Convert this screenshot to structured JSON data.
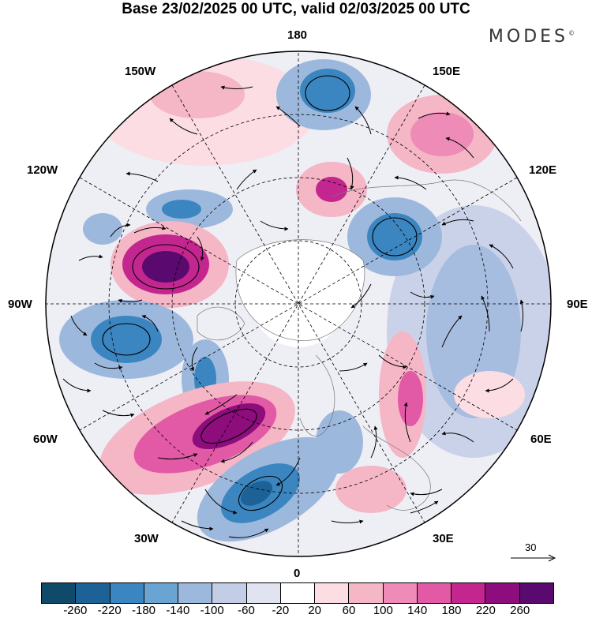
{
  "title": "Base 23/02/2025 00 UTC, valid 02/03/2025 00 UTC",
  "brand": "MODES",
  "brand_mark": "©",
  "meridian_labels": {
    "top": "180",
    "bottom": "0",
    "left": "90W",
    "right": "90E",
    "upper_left_1": "150W",
    "upper_left_2": "120W",
    "lower_left_1": "60W",
    "lower_left_2": "30W",
    "upper_right_1": "150E",
    "upper_right_2": "120E",
    "lower_right_1": "60E",
    "lower_right_2": "30E"
  },
  "reference_vector": "30",
  "legend": {
    "ticks": [
      "-260",
      "-220",
      "-180",
      "-140",
      "-100",
      "-60",
      "-20",
      "20",
      "60",
      "100",
      "140",
      "180",
      "220",
      "260"
    ],
    "colors": [
      "#0f4a6b",
      "#1d6296",
      "#3b86c0",
      "#6aa4d2",
      "#9db8dd",
      "#c3cde6",
      "#e2e3f0",
      "#ffffff",
      "#fbdde3",
      "#f5b6c6",
      "#ef8bb7",
      "#e25aa6",
      "#c3268f",
      "#8c0d7b",
      "#5a0a6e"
    ]
  },
  "anomalies": [
    {
      "name": "neg",
      "color": "#3b86c0"
    },
    {
      "name": "pos",
      "color": "#c3268f"
    }
  ]
}
